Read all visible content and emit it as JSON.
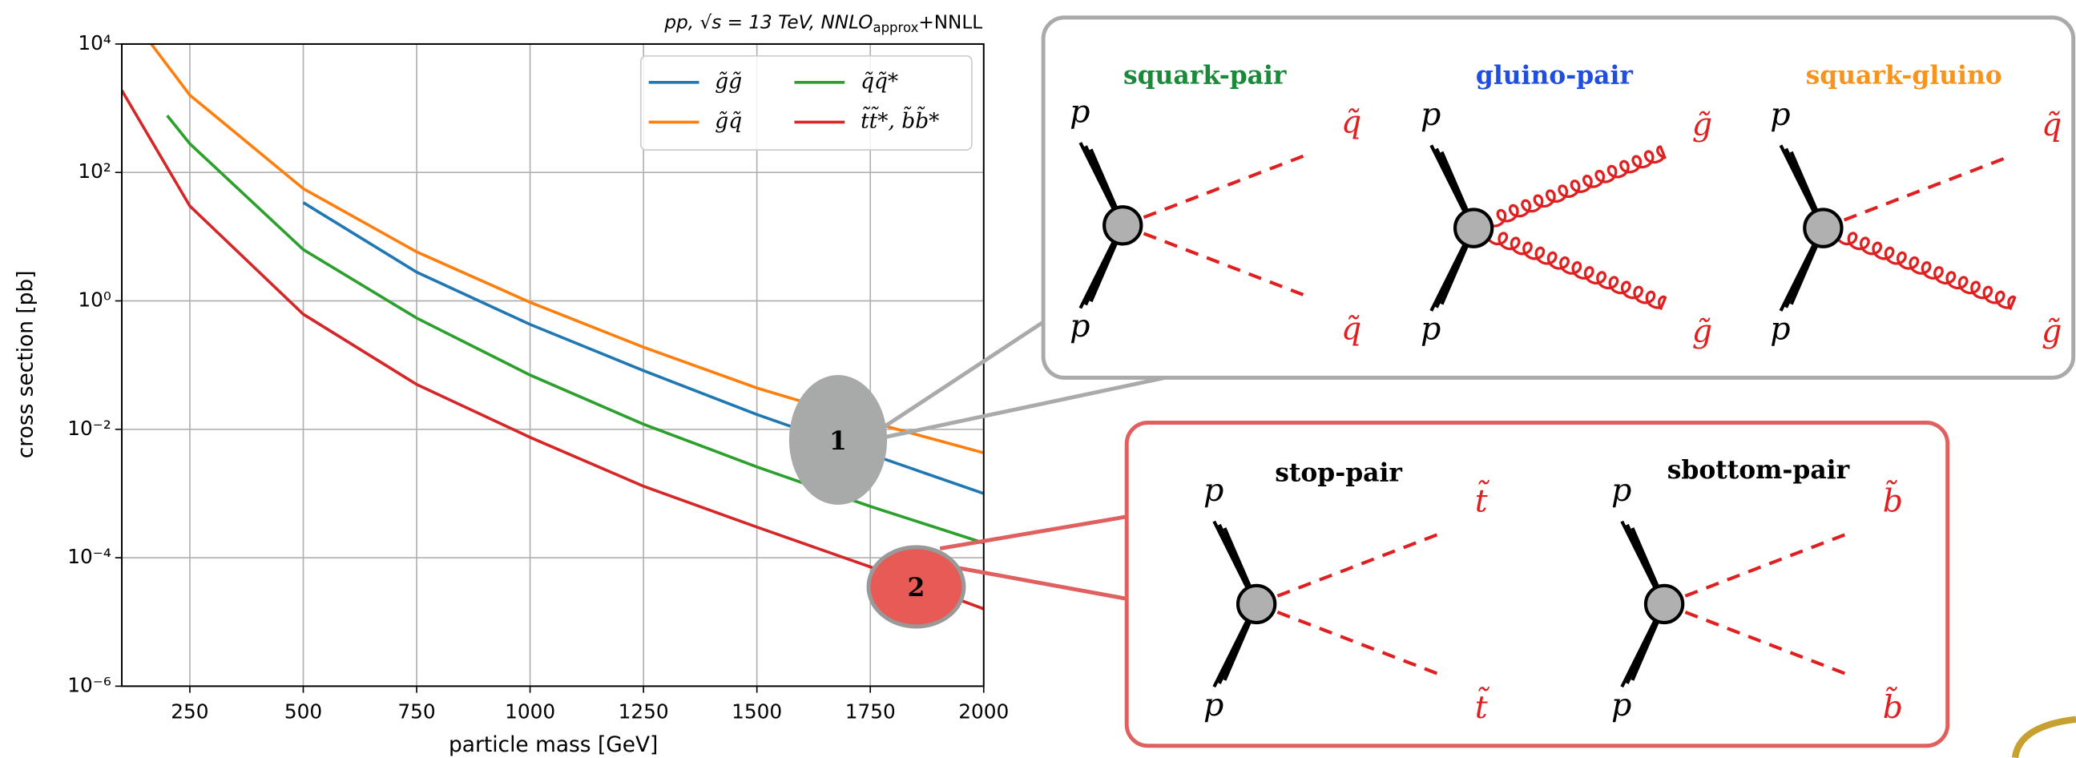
{
  "chart_data": {
    "type": "line",
    "title": "pp, √s = 13 TeV, NNLO",
    "title_subscript": "approx",
    "title_suffix": "+NNLL",
    "xlabel": "particle mass [GeV]",
    "ylabel": "cross section [pb]",
    "xlim": [
      100,
      2000
    ],
    "xticks": [
      250,
      500,
      750,
      1000,
      1250,
      1500,
      1750,
      2000
    ],
    "ylim": [
      1e-06,
      10000
    ],
    "log_y": true,
    "grid": true,
    "legend": "upper right",
    "yticks": [
      {
        "value": 1e-06,
        "label": "10⁻⁶"
      },
      {
        "value": 0.0001,
        "label": "10⁻⁴"
      },
      {
        "value": 0.01,
        "label": "10⁻²"
      },
      {
        "value": 1,
        "label": "10⁰"
      },
      {
        "value": 100,
        "label": "10²"
      },
      {
        "value": 10000,
        "label": "10⁴"
      }
    ],
    "series": [
      {
        "name": "g̃g̃",
        "color": "#1f77b4",
        "x": [
          500,
          750,
          1000,
          1250,
          1500,
          1750,
          2000
        ],
        "values": [
          34,
          2.8,
          0.43,
          0.082,
          0.017,
          0.0041,
          0.001
        ]
      },
      {
        "name": "g̃q̃",
        "color": "#ff7f0e",
        "x": [
          165,
          250,
          500,
          750,
          1000,
          1250,
          1500,
          1750,
          2000
        ],
        "values": [
          10000,
          1600,
          56,
          5.8,
          0.95,
          0.19,
          0.044,
          0.013,
          0.0043
        ]
      },
      {
        "name": "q̃q̃*",
        "color": "#2ca02c",
        "x": [
          200,
          250,
          500,
          750,
          1000,
          1250,
          1500,
          1750,
          2000
        ],
        "values": [
          770,
          280,
          6.3,
          0.54,
          0.07,
          0.012,
          0.0026,
          0.00063,
          0.00017
        ]
      },
      {
        "name": "t̃t̃*, b̃b̃*",
        "color": "#d62728",
        "x": [
          100,
          250,
          500,
          750,
          1000,
          1250,
          1500,
          1750,
          2000
        ],
        "values": [
          1900,
          30,
          0.62,
          0.05,
          0.0075,
          0.0013,
          0.0003,
          7.2e-05,
          1.6e-05
        ]
      }
    ]
  },
  "callouts": [
    {
      "label": "1",
      "diagrams": [
        {
          "title": "squark-pair",
          "in_top": "p",
          "in_bottom": "p",
          "out_top": "q̃",
          "out_bottom": "q̃"
        },
        {
          "title": "gluino-pair",
          "in_top": "p",
          "in_bottom": "p",
          "out_top": "g̃",
          "out_bottom": "g̃"
        },
        {
          "title": "squark-gluino",
          "in_top": "p",
          "in_bottom": "p",
          "out_top": "q̃",
          "out_bottom": "g̃"
        }
      ]
    },
    {
      "label": "2",
      "diagrams": [
        {
          "title": "stop-pair",
          "in_top": "p",
          "in_bottom": "p",
          "out_top": "t̃",
          "out_bottom": "t̃"
        },
        {
          "title": "sbottom-pair",
          "in_top": "p",
          "in_bottom": "p",
          "out_top": "b̃",
          "out_bottom": "b̃"
        }
      ]
    }
  ]
}
